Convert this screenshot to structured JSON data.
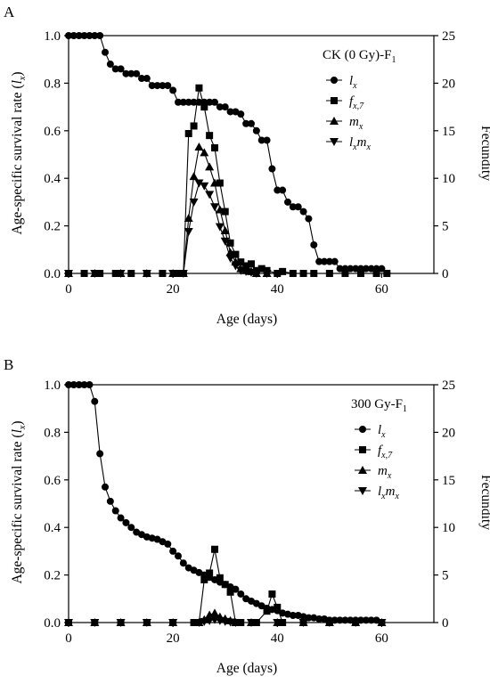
{
  "colors": {
    "series": "#000000",
    "background": "#ffffff"
  },
  "chart_data": [
    {
      "panel": "A",
      "type": "line",
      "title": "",
      "legend_title": "CK (0 Gy)-F1",
      "legend_position": "top-right",
      "grid": false,
      "xlabel": "Age (days)",
      "ylabel": "Age-specific survival rate (lx)",
      "y2label": "Fecundity",
      "xlim": [
        0,
        70
      ],
      "ylim": [
        0,
        1.0
      ],
      "y2lim": [
        0,
        25
      ],
      "xticks": [
        "0",
        "20",
        "40",
        "60"
      ],
      "yticks": [
        "0.0",
        "0.2",
        "0.4",
        "0.6",
        "0.8",
        "1.0"
      ],
      "y2ticks": [
        "0",
        "5",
        "10",
        "15",
        "20",
        "25"
      ],
      "series": [
        {
          "name": "lx",
          "axis": "left",
          "marker": "circle",
          "x": [
            0,
            1,
            2,
            3,
            4,
            5,
            6,
            7,
            8,
            9,
            10,
            11,
            12,
            13,
            14,
            15,
            16,
            17,
            18,
            19,
            20,
            21,
            22,
            23,
            24,
            25,
            26,
            27,
            28,
            29,
            30,
            31,
            32,
            33,
            34,
            35,
            36,
            37,
            38,
            39,
            40,
            41,
            42,
            43,
            44,
            45,
            46,
            47,
            48,
            49,
            50,
            51,
            52,
            53,
            54,
            55,
            56,
            57,
            58,
            59,
            60,
            61
          ],
          "y": [
            1,
            1,
            1,
            1,
            1,
            1,
            1,
            0.93,
            0.88,
            0.86,
            0.86,
            0.84,
            0.84,
            0.84,
            0.82,
            0.82,
            0.79,
            0.79,
            0.79,
            0.79,
            0.77,
            0.72,
            0.72,
            0.72,
            0.72,
            0.72,
            0.72,
            0.72,
            0.72,
            0.7,
            0.7,
            0.68,
            0.68,
            0.67,
            0.63,
            0.63,
            0.6,
            0.56,
            0.56,
            0.44,
            0.35,
            0.35,
            0.3,
            0.28,
            0.28,
            0.26,
            0.23,
            0.12,
            0.05,
            0.05,
            0.05,
            0.05,
            0.02,
            0.02,
            0.02,
            0.02,
            0.02,
            0.02,
            0.02,
            0.02,
            0.02,
            0
          ]
        },
        {
          "name": "fx,7",
          "axis": "right",
          "marker": "square",
          "x": [
            0,
            3,
            6,
            9,
            12,
            15,
            18,
            21,
            22,
            23,
            24,
            25,
            26,
            27,
            28,
            29,
            30,
            31,
            32,
            33,
            34,
            35,
            36,
            37,
            38,
            40,
            41,
            43,
            45,
            47,
            50,
            53,
            56,
            59,
            61
          ],
          "y": [
            0,
            0,
            0,
            0,
            0,
            0,
            0,
            0,
            0,
            14.7,
            15.5,
            19.5,
            17.5,
            14.5,
            13.2,
            9.5,
            6.5,
            3.2,
            2.0,
            1.2,
            0.8,
            1.0,
            0.3,
            0.5,
            0.3,
            0,
            0.2,
            0,
            0,
            0,
            0,
            0,
            0,
            0,
            0
          ]
        },
        {
          "name": "mx",
          "axis": "right",
          "marker": "triangle-up",
          "x": [
            0,
            5,
            10,
            15,
            20,
            22,
            23,
            24,
            25,
            26,
            27,
            28,
            29,
            30,
            31,
            32,
            33,
            34,
            35,
            36,
            38
          ],
          "y": [
            0,
            0,
            0,
            0,
            0,
            0,
            5.8,
            10.2,
            13.3,
            12.7,
            11.2,
            9.5,
            6.7,
            4.5,
            2.2,
            1.2,
            0.5,
            0.3,
            0.2,
            0,
            0
          ]
        },
        {
          "name": "lxmx",
          "axis": "right",
          "marker": "triangle-down",
          "x": [
            0,
            5,
            10,
            15,
            20,
            22,
            23,
            24,
            25,
            26,
            27,
            28,
            29,
            30,
            31,
            32,
            33,
            34,
            35,
            36,
            38
          ],
          "y": [
            0,
            0,
            0,
            0,
            0,
            0,
            4.4,
            7.5,
            9.5,
            9.2,
            8.3,
            7.0,
            4.9,
            3.4,
            1.6,
            0.8,
            0.3,
            0.2,
            0.1,
            0,
            0
          ]
        }
      ]
    },
    {
      "panel": "B",
      "type": "line",
      "title": "",
      "legend_title": "300 Gy-F1",
      "legend_position": "top-right",
      "grid": false,
      "xlabel": "Age (days)",
      "ylabel": "Age-specific survival rate (lx)",
      "y2label": "Fecundity",
      "xlim": [
        0,
        70
      ],
      "ylim": [
        0,
        1.0
      ],
      "y2lim": [
        0,
        25
      ],
      "xticks": [
        "0",
        "20",
        "40",
        "60"
      ],
      "yticks": [
        "0.0",
        "0.2",
        "0.4",
        "0.6",
        "0.8",
        "1.0"
      ],
      "y2ticks": [
        "0",
        "5",
        "10",
        "15",
        "20",
        "25"
      ],
      "series": [
        {
          "name": "lx",
          "axis": "left",
          "marker": "circle",
          "x": [
            0,
            1,
            2,
            3,
            4,
            5,
            6,
            7,
            8,
            9,
            10,
            11,
            12,
            13,
            14,
            15,
            16,
            17,
            18,
            19,
            20,
            21,
            22,
            23,
            24,
            25,
            26,
            27,
            28,
            29,
            30,
            31,
            32,
            33,
            34,
            35,
            36,
            37,
            38,
            39,
            40,
            41,
            42,
            43,
            44,
            45,
            46,
            47,
            48,
            49,
            50,
            51,
            52,
            53,
            54,
            55,
            56,
            57,
            58,
            59,
            60
          ],
          "y": [
            1,
            1,
            1,
            1,
            1,
            0.93,
            0.71,
            0.57,
            0.51,
            0.47,
            0.44,
            0.42,
            0.4,
            0.38,
            0.37,
            0.36,
            0.355,
            0.35,
            0.34,
            0.33,
            0.3,
            0.28,
            0.25,
            0.23,
            0.22,
            0.21,
            0.2,
            0.19,
            0.18,
            0.17,
            0.16,
            0.15,
            0.14,
            0.12,
            0.1,
            0.09,
            0.08,
            0.07,
            0.06,
            0.055,
            0.05,
            0.04,
            0.035,
            0.03,
            0.03,
            0.025,
            0.02,
            0.02,
            0.015,
            0.015,
            0.01,
            0.01,
            0.01,
            0.01,
            0.01,
            0.01,
            0.01,
            0.01,
            0.01,
            0.01,
            0
          ]
        },
        {
          "name": "fx,7",
          "axis": "right",
          "marker": "square",
          "x": [
            0,
            5,
            10,
            15,
            20,
            24,
            25,
            26,
            27,
            28,
            29,
            30,
            31,
            32,
            33,
            36,
            38,
            39,
            40,
            41,
            45,
            50,
            55,
            60
          ],
          "y": [
            0,
            0,
            0,
            0,
            0,
            0,
            0,
            4.5,
            5.2,
            7.7,
            4.7,
            4.0,
            3.2,
            0,
            0,
            0,
            1.2,
            3.0,
            1.6,
            0,
            0,
            0,
            0,
            0
          ]
        },
        {
          "name": "mx",
          "axis": "right",
          "marker": "triangle-up",
          "x": [
            0,
            5,
            10,
            15,
            20,
            25,
            26,
            27,
            28,
            29,
            30,
            31,
            32,
            35,
            40,
            45,
            50,
            55,
            60
          ],
          "y": [
            0,
            0,
            0,
            0,
            0,
            0,
            0.3,
            0.8,
            1.0,
            0.6,
            0.4,
            0.2,
            0,
            0,
            0,
            0,
            0,
            0,
            0
          ]
        },
        {
          "name": "lxmx",
          "axis": "right",
          "marker": "triangle-down",
          "x": [
            0,
            5,
            10,
            15,
            20,
            25,
            26,
            27,
            28,
            29,
            30,
            31,
            32,
            35,
            40,
            45,
            50,
            55,
            60
          ],
          "y": [
            0,
            0,
            0,
            0,
            0,
            0,
            0.1,
            0.2,
            0.3,
            0.2,
            0.1,
            0.05,
            0,
            0,
            0,
            0,
            0,
            0,
            0
          ]
        }
      ]
    }
  ]
}
